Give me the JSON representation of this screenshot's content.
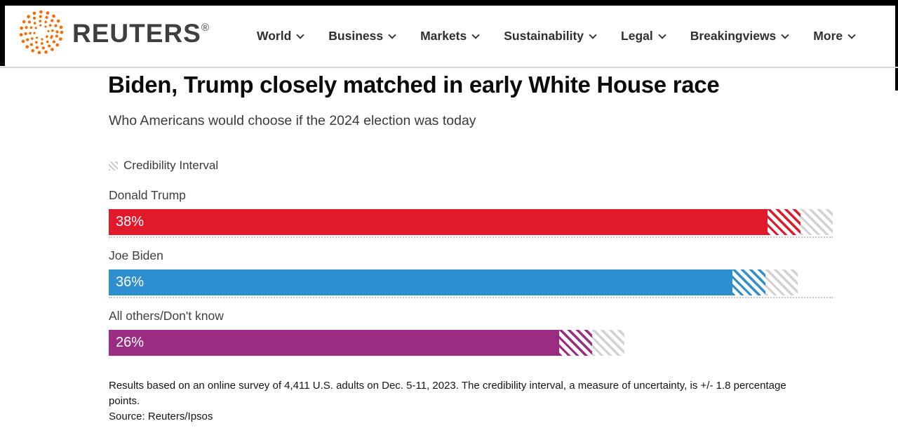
{
  "header": {
    "brand": "REUTERS",
    "registered_mark": "®",
    "nav": [
      "World",
      "Business",
      "Markets",
      "Sustainability",
      "Legal",
      "Breakingviews",
      "More"
    ]
  },
  "article": {
    "headline": "Biden, Trump closely matched in early White House race",
    "subtitle": "Who Americans would choose if the 2024 election was today"
  },
  "chart_data": {
    "type": "bar",
    "orientation": "horizontal",
    "title": "Biden, Trump closely matched in early White House race",
    "subtitle": "Who Americans would choose if the 2024 election was today",
    "legend_label": "Credibility Interval",
    "categories": [
      "Donald Trump",
      "Joe Biden",
      "All others/Don't know"
    ],
    "values": [
      38,
      36,
      26
    ],
    "value_labels": [
      "38%",
      "36%",
      "26%"
    ],
    "unit": "percent",
    "credibility_interval_pp": 1.8,
    "xlim": [
      0,
      42
    ],
    "grid": false,
    "legend_position": "top-left",
    "colors": [
      "#e01a2b",
      "#2e8fd0",
      "#9a2d82"
    ],
    "hatch_gray": "#d2d2d2",
    "note": "Results based on an online survey of 4,411 U.S. adults on Dec. 5-11, 2023. The credibility interval, a measure of uncertainty, is +/- 1.8 percentage points.",
    "source": "Source: Reuters/Ipsos"
  },
  "colors": {
    "brand_orange": "#f96a00",
    "rule_gray": "#d8d8d8"
  }
}
